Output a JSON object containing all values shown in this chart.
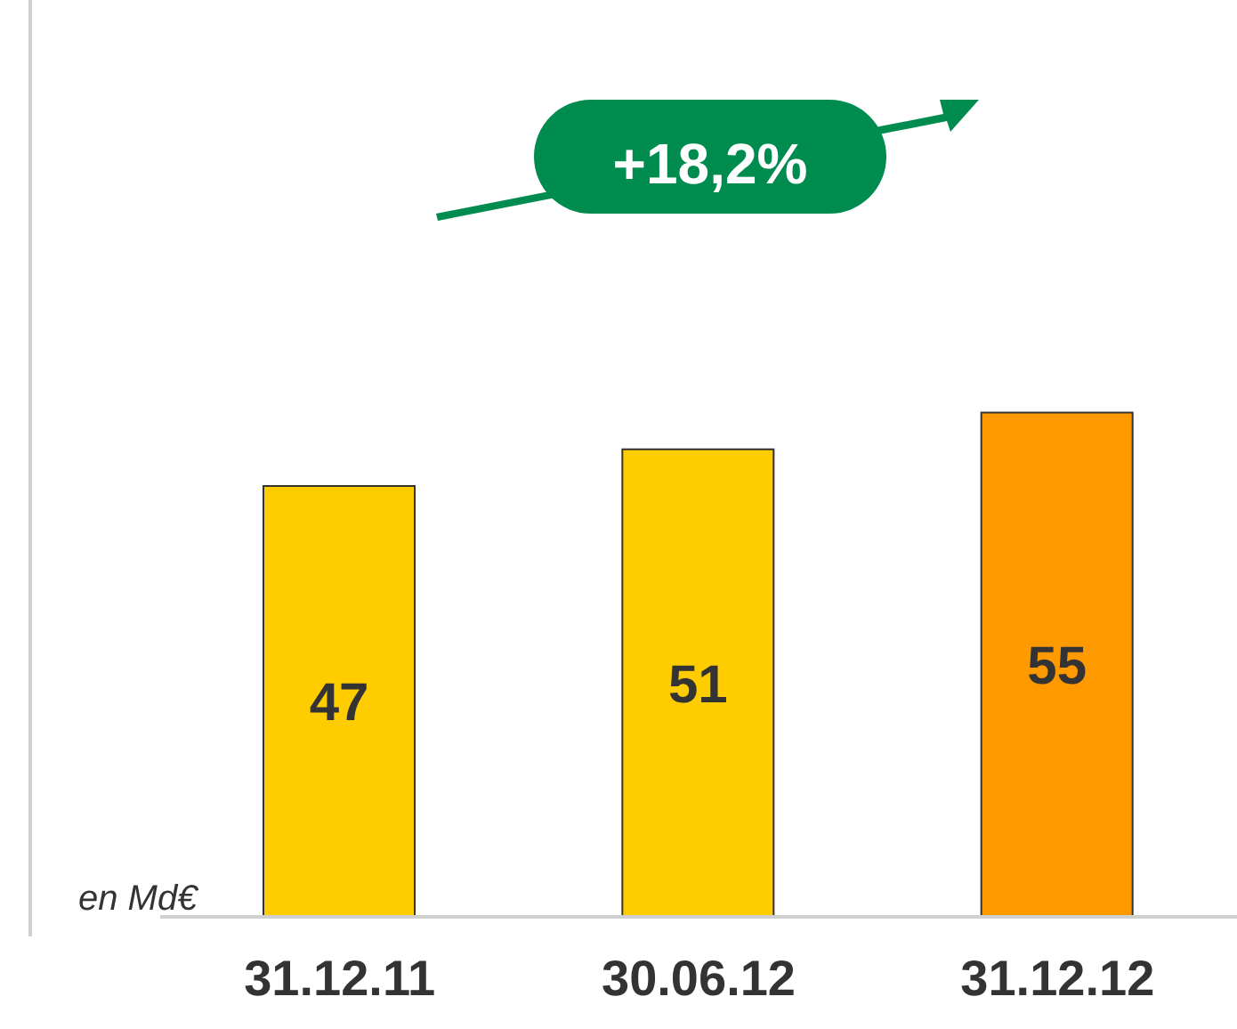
{
  "chart_data": {
    "type": "bar",
    "categories": [
      "31.12.11",
      "30.06.12",
      "31.12.12"
    ],
    "values": [
      47,
      51,
      55
    ],
    "colors": [
      "#ffcc00",
      "#ffcc00",
      "#ff9900"
    ],
    "ylim": [
      0,
      100
    ],
    "data_labels": true,
    "annotations": [
      "+18,2%",
      "en Md€"
    ]
  }
}
